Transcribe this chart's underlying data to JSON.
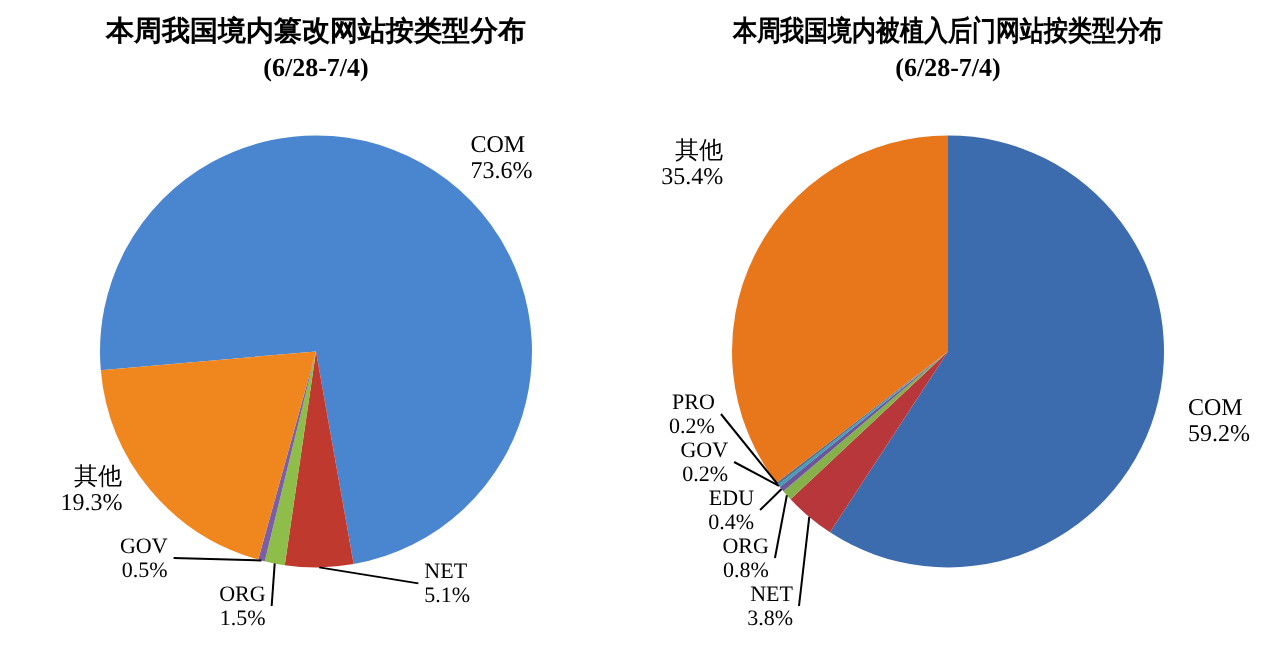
{
  "chart_data": [
    {
      "type": "pie",
      "title": "本周我国境内篡改网站按类型分布",
      "subtitle": "(6/28-7/4)",
      "categories": [
        "COM",
        "NET",
        "ORG",
        "GOV",
        "其他"
      ],
      "values": [
        73.6,
        5.1,
        1.5,
        0.5,
        19.3
      ],
      "colors": [
        "#4a86d0",
        "#c0392f",
        "#8ebd4a",
        "#7a5fa6",
        "#f0861e"
      ],
      "value_labels": [
        "73.6%",
        "5.1%",
        "1.5%",
        "0.5%",
        "19.3%"
      ]
    },
    {
      "type": "pie",
      "title": "本周我国境内被植入后门网站按类型分布",
      "subtitle": "(6/28-7/4)",
      "categories": [
        "COM",
        "NET",
        "ORG",
        "EDU",
        "GOV",
        "PRO",
        "其他"
      ],
      "values": [
        59.2,
        3.8,
        0.8,
        0.4,
        0.2,
        0.2,
        35.4
      ],
      "colors": [
        "#3d6cae",
        "#b8373a",
        "#86b04a",
        "#6d559c",
        "#3aa0b8",
        "#5a6f8f",
        "#e8761a"
      ],
      "value_labels": [
        "59.2%",
        "3.8%",
        "0.8%",
        "0.4%",
        "0.2%",
        "0.2%",
        "35.4%"
      ]
    }
  ]
}
